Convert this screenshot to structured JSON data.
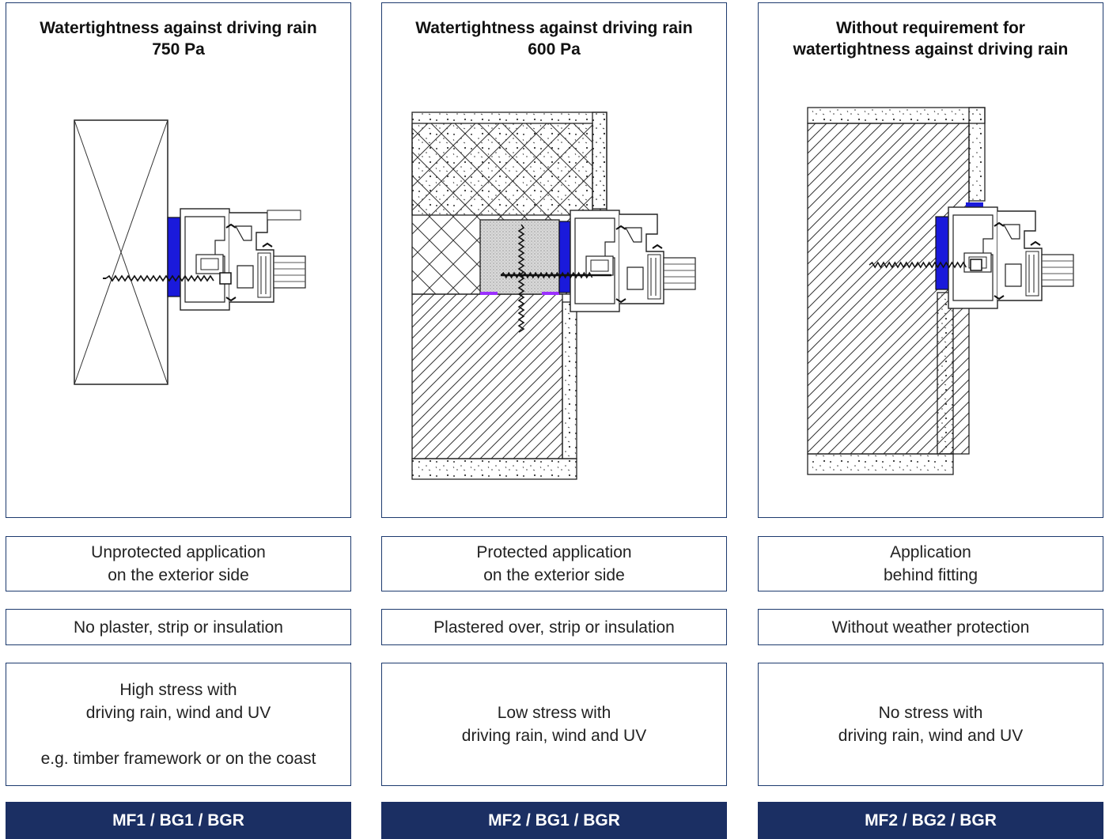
{
  "columns": [
    {
      "title_lines": [
        "Watertightness against driving rain",
        "750 Pa"
      ],
      "application_lines": [
        "Unprotected application",
        "on the exterior side"
      ],
      "finish": "No plaster, strip or insulation",
      "stress_lines": [
        "High stress with",
        "driving rain, wind and UV",
        "",
        "e.g. timber framework or on the coast"
      ],
      "code": "MF1 / BG1 / BGR"
    },
    {
      "title_lines": [
        "Watertightness against driving rain",
        "600 Pa"
      ],
      "application_lines": [
        "Protected application",
        "on the exterior side"
      ],
      "finish": "Plastered over, strip or insulation",
      "stress_lines": [
        "Low stress with",
        "driving rain, wind and UV"
      ],
      "code": "MF2 / BG1 / BGR"
    },
    {
      "title_lines": [
        "Without requirement for",
        "watertightness against driving rain"
      ],
      "application_lines": [
        "Application",
        "behind fitting"
      ],
      "finish": "Without weather protection",
      "stress_lines": [
        "No stress with",
        "driving rain, wind and UV"
      ],
      "code": "MF2 / BG2 / BGR"
    }
  ],
  "colors": {
    "border": "#1d3a6e",
    "footer_bg": "#1b2f63",
    "footer_text": "#ffffff",
    "sealing_tape": "#1a1adb",
    "membrane": "#9b30ff"
  },
  "icons": [
    "timber-section-drawing",
    "insulated-wall-drawing",
    "masonry-wall-drawing",
    "screw-icon",
    "window-profile-icon"
  ]
}
